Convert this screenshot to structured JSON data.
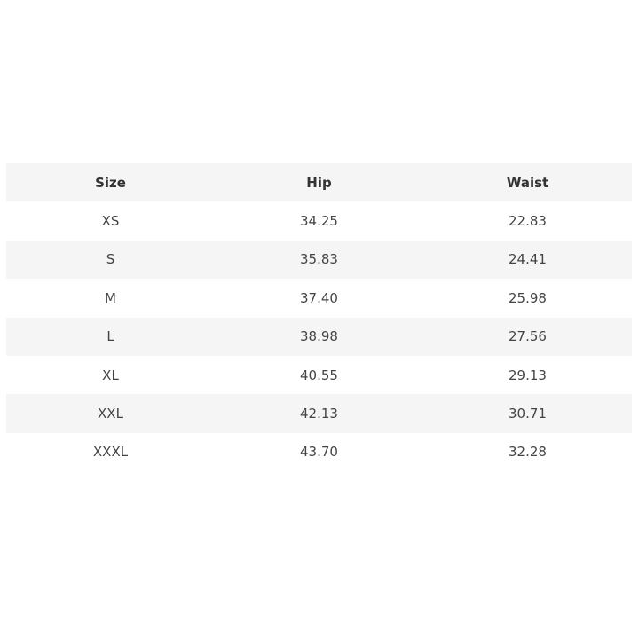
{
  "table": {
    "headers": [
      "Size",
      "Hip",
      "Waist"
    ],
    "rows": [
      [
        "XS",
        "34.25",
        "22.83"
      ],
      [
        "S",
        "35.83",
        "24.41"
      ],
      [
        "M",
        "37.40",
        "25.98"
      ],
      [
        "L",
        "38.98",
        "27.56"
      ],
      [
        "XL",
        "40.55",
        "29.13"
      ],
      [
        "XXL",
        "42.13",
        "30.71"
      ],
      [
        "XXXL",
        "43.70",
        "32.28"
      ]
    ],
    "stripe_color": "#f5f5f5"
  }
}
